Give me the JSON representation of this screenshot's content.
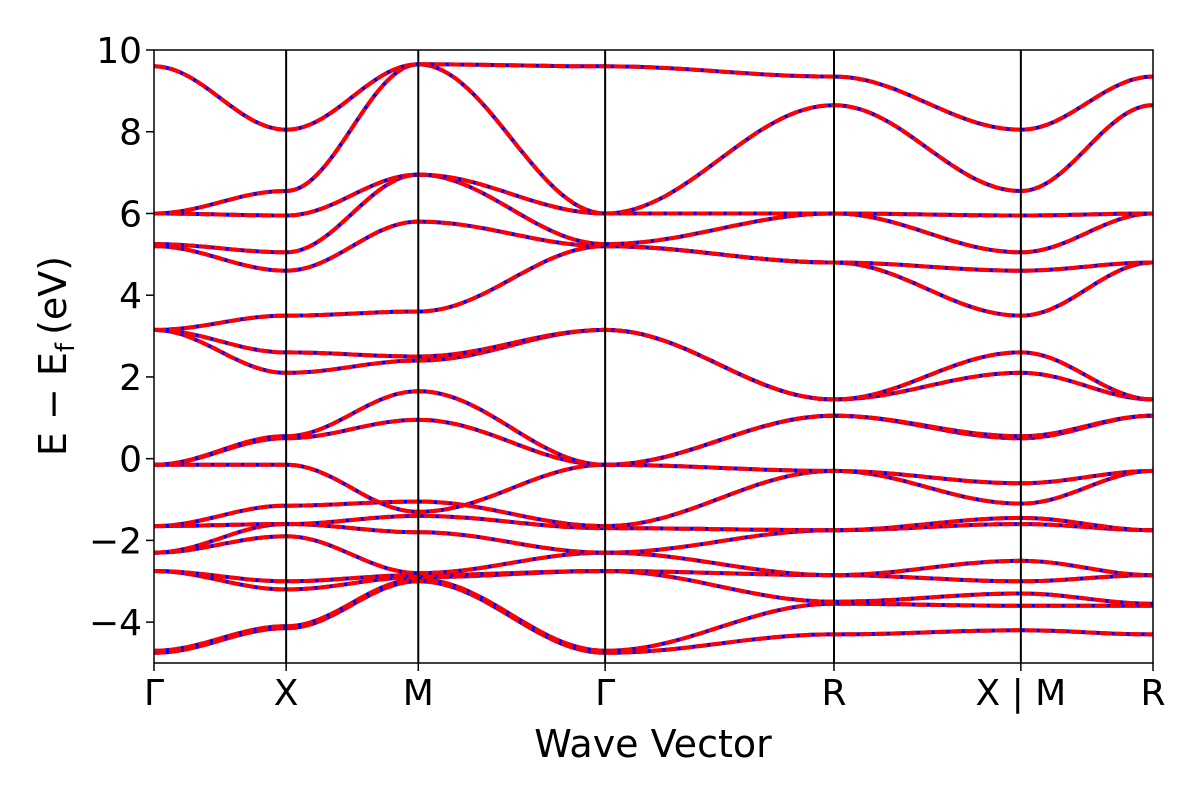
{
  "chart_data": {
    "type": "line",
    "xlabel": "Wave Vector",
    "ylabel": "E − E",
    "ylabel_sub": "f",
    "ylabel_unit": "(eV)",
    "ylim": [
      -5,
      10
    ],
    "yticks": [
      {
        "value": 10,
        "label": "10"
      },
      {
        "value": 8,
        "label": "8"
      },
      {
        "value": 6,
        "label": "6"
      },
      {
        "value": 4,
        "label": "4"
      },
      {
        "value": 2,
        "label": "2"
      },
      {
        "value": 0,
        "label": "0"
      },
      {
        "value": -2,
        "label": "−2"
      },
      {
        "value": -4,
        "label": "−4"
      }
    ],
    "xlim": [
      0,
      6.6
    ],
    "kpoints": [
      {
        "label": "Γ",
        "x": 0.0
      },
      {
        "label": "X",
        "x": 1.0
      },
      {
        "label": "M",
        "x": 2.0
      },
      {
        "label": "Γ",
        "x": 3.414
      },
      {
        "label": "R",
        "x": 5.146
      },
      {
        "label": "X | M",
        "x": 6.56
      },
      {
        "label": "R",
        "x": 7.56
      }
    ],
    "grid": false,
    "legend": "none",
    "colors": {
      "primary": "#ff0000",
      "secondary": "#0000ff"
    },
    "bands": [
      {
        "x": [
          0,
          1,
          2,
          3.414,
          5.146,
          6.56,
          7.56
        ],
        "y": [
          -4.75,
          -4.15,
          -3.0,
          -4.75,
          -4.3,
          -4.2,
          -4.3
        ]
      },
      {
        "x": [
          0,
          1,
          2,
          3.414,
          5.146,
          6.56,
          7.56
        ],
        "y": [
          -4.7,
          -4.1,
          -2.95,
          -4.7,
          -3.55,
          -3.6,
          -3.6
        ]
      },
      {
        "x": [
          0,
          1,
          2,
          3.414,
          5.146,
          6.56,
          7.56
        ],
        "y": [
          -2.75,
          -3.2,
          -2.9,
          -2.75,
          -3.5,
          -3.3,
          -3.55
        ]
      },
      {
        "x": [
          0,
          1,
          2,
          3.414,
          5.146,
          6.56,
          7.56
        ],
        "y": [
          -2.75,
          -3.0,
          -2.85,
          -2.75,
          -2.85,
          -3.0,
          -2.85
        ]
      },
      {
        "x": [
          0,
          1,
          2,
          3.414,
          5.146,
          6.56,
          7.56
        ],
        "y": [
          -2.3,
          -1.9,
          -2.8,
          -2.3,
          -2.85,
          -2.5,
          -2.85
        ]
      },
      {
        "x": [
          0,
          1,
          2,
          3.414,
          5.146,
          6.56,
          7.56
        ],
        "y": [
          -2.3,
          -1.6,
          -1.8,
          -2.3,
          -1.75,
          -1.6,
          -1.75
        ]
      },
      {
        "x": [
          0,
          1,
          2,
          3.414,
          5.146,
          6.56,
          7.56
        ],
        "y": [
          -1.65,
          -1.6,
          -1.4,
          -1.7,
          -1.75,
          -1.45,
          -1.75
        ]
      },
      {
        "x": [
          0,
          1,
          2,
          3.414,
          5.146,
          6.56,
          7.56
        ],
        "y": [
          -1.65,
          -1.15,
          -1.05,
          -1.65,
          -0.3,
          -1.1,
          -0.3
        ]
      },
      {
        "x": [
          0,
          1,
          2,
          3.414,
          5.146,
          6.56,
          7.56
        ],
        "y": [
          -0.15,
          -0.15,
          -1.3,
          -0.15,
          -0.3,
          -0.6,
          -0.3
        ]
      },
      {
        "x": [
          0,
          1,
          2,
          3.414,
          5.146,
          6.56,
          7.56
        ],
        "y": [
          -0.15,
          0.5,
          0.95,
          -0.15,
          1.05,
          0.5,
          1.05
        ]
      },
      {
        "x": [
          0,
          1,
          2,
          3.414,
          5.146,
          6.56,
          7.56
        ],
        "y": [
          -0.15,
          0.55,
          1.65,
          -0.15,
          1.05,
          0.55,
          1.05
        ]
      },
      {
        "x": [
          0,
          1,
          2,
          3.414,
          5.146,
          6.56,
          7.56
        ],
        "y": [
          3.15,
          2.1,
          2.4,
          3.15,
          1.45,
          2.1,
          1.45
        ]
      },
      {
        "x": [
          0,
          1,
          2,
          3.414,
          5.146,
          6.56,
          7.56
        ],
        "y": [
          3.15,
          2.6,
          2.5,
          3.15,
          1.45,
          2.6,
          1.45
        ]
      },
      {
        "x": [
          0,
          1,
          2,
          3.414,
          5.146,
          6.56,
          7.56
        ],
        "y": [
          3.15,
          3.5,
          3.6,
          5.2,
          4.8,
          3.5,
          4.8
        ]
      },
      {
        "x": [
          0,
          1,
          2,
          3.414,
          5.146,
          6.56,
          7.56
        ],
        "y": [
          5.2,
          4.6,
          5.8,
          5.2,
          4.8,
          4.6,
          4.8
        ]
      },
      {
        "x": [
          0,
          1,
          2,
          3.414,
          5.146,
          6.56,
          7.56
        ],
        "y": [
          5.25,
          5.05,
          6.95,
          5.25,
          6.0,
          5.05,
          6.0
        ]
      },
      {
        "x": [
          0,
          1,
          2,
          3.414,
          5.146,
          6.56,
          7.56
        ],
        "y": [
          6.0,
          5.95,
          6.95,
          6.0,
          6.0,
          5.95,
          6.0
        ]
      },
      {
        "x": [
          0,
          1,
          2,
          3.414,
          5.146,
          6.56,
          7.56
        ],
        "y": [
          6.0,
          6.55,
          9.65,
          6.0,
          8.65,
          6.55,
          8.65
        ]
      },
      {
        "x": [
          0,
          1,
          2,
          3.414,
          5.146,
          6.56,
          7.56
        ],
        "y": [
          9.6,
          8.05,
          9.65,
          9.6,
          9.35,
          8.05,
          9.35
        ]
      }
    ]
  }
}
